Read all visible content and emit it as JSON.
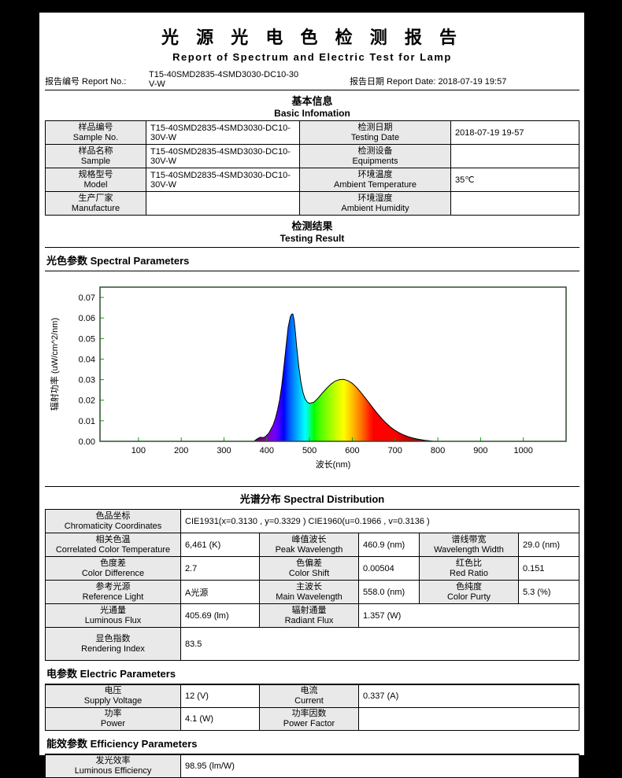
{
  "header": {
    "title_cn": "光 源 光 电 色 检 测 报 告",
    "title_en": "Report  of  Spectrum  and  Electric  Test  for  Lamp",
    "report_no_label": "报告编号 Report No.:",
    "report_no_value": "T15-40SMD2835-4SMD3030-DC10-30V-W",
    "report_date_label": "报告日期 Report Date:",
    "report_date_value": "2018-07-19 19:57"
  },
  "basic_info": {
    "title_cn": "基本信息",
    "title_en": "Basic Infomation",
    "rows": [
      {
        "l1_cn": "样品编号",
        "l1_en": "Sample No.",
        "v1": "T15-40SMD2835-4SMD3030-DC10-30V-W",
        "l2_cn": "检测日期",
        "l2_en": "Testing Date",
        "v2": "2018-07-19 19-57"
      },
      {
        "l1_cn": "样品名称",
        "l1_en": "Sample",
        "v1": "T15-40SMD2835-4SMD3030-DC10-30V-W",
        "l2_cn": "检测设备",
        "l2_en": "Equipments",
        "v2": ""
      },
      {
        "l1_cn": "规格型号",
        "l1_en": "Model",
        "v1": "T15-40SMD2835-4SMD3030-DC10-30V-W",
        "l2_cn": "环境温度",
        "l2_en": "Ambient Temperature",
        "v2": "35℃"
      },
      {
        "l1_cn": "生产厂家",
        "l1_en": "Manufacture",
        "v1": "",
        "l2_cn": "环境湿度",
        "l2_en": "Ambient Humidity",
        "v2": ""
      }
    ]
  },
  "testing_result": {
    "title_cn": "检测结果",
    "title_en": "Testing Result"
  },
  "sections": {
    "spectral_params": {
      "cn": "光色参数",
      "en": "Spectral Parameters"
    },
    "spectral_distribution": {
      "cn": "光谱分布",
      "en": "Spectral Distribution"
    },
    "electric_params": {
      "cn": "电参数",
      "en": "Electric Parameters"
    },
    "efficiency_params": {
      "cn": "能效参数",
      "en": "Efficiency Parameters"
    }
  },
  "spectral": {
    "chromaticity_label_cn": "色品坐标",
    "chromaticity_label_en": "Chromaticity Coordinates",
    "chromaticity_value": "CIE1931(x=0.3130 , y=0.3329 )    CIE1960(u=0.1966 , v=0.3136 )",
    "rows": [
      {
        "l1_cn": "相关色温",
        "l1_en": "Correlated Color Temperature",
        "v1": "6,461 (K)",
        "l2_cn": "峰值波长",
        "l2_en": "Peak Wavelength",
        "v2": "460.9 (nm)",
        "l3_cn": "谱线带宽",
        "l3_en": "Wavelength Width",
        "v3": "29.0 (nm)"
      },
      {
        "l1_cn": "色度差",
        "l1_en": "Color Difference",
        "v1": "2.7",
        "l2_cn": "色偏差",
        "l2_en": "Color Shift",
        "v2": "0.00504",
        "l3_cn": "红色比",
        "l3_en": "Red Ratio",
        "v3": "0.151"
      },
      {
        "l1_cn": "参考光源",
        "l1_en": "Reference Light",
        "v1": "A光源",
        "l2_cn": "主波长",
        "l2_en": "Main Wavelength",
        "v2": "558.0 (nm)",
        "l3_cn": "色纯度",
        "l3_en": "Color Purty",
        "v3": "5.3 (%)"
      }
    ],
    "flux_row": {
      "l1_cn": "光通量",
      "l1_en": "Luminous Flux",
      "v1": "405.69 (lm)",
      "l2_cn": "辐射通量",
      "l2_en": "Radiant Flux",
      "v2": "1.357 (W)"
    },
    "cri_row": {
      "l_cn": "显色指数",
      "l_en": "Rendering Index",
      "v": "83.5"
    }
  },
  "electric": {
    "rows": [
      {
        "l1_cn": "电压",
        "l1_en": "Supply Voltage",
        "v1": "12 (V)",
        "l2_cn": "电流",
        "l2_en": "Current",
        "v2": "0.337 (A)"
      },
      {
        "l1_cn": "功率",
        "l1_en": "Power",
        "v1": "4.1 (W)",
        "l2_cn": "功率因数",
        "l2_en": "Power Factor",
        "v2": ""
      }
    ]
  },
  "efficiency": {
    "row": {
      "l_cn": "发光效率",
      "l_en": "Luminous Efficiency",
      "v": "98.95 (lm/W)"
    }
  },
  "chart_data": {
    "type": "area",
    "title": "",
    "xlabel": "波长(nm)",
    "ylabel": "辐射功率 (uW/cm^2/nm)",
    "xlim": [
      10,
      1100
    ],
    "ylim": [
      0,
      0.075
    ],
    "xticks": [
      100,
      200,
      300,
      400,
      500,
      600,
      700,
      800,
      900,
      1000
    ],
    "yticks": [
      0,
      0.01,
      0.02,
      0.03,
      0.04,
      0.05,
      0.06,
      0.07
    ],
    "grid": false,
    "legend": false,
    "frame_color": "#2e4d2e",
    "tick_color": "#00a400",
    "curve_color": "#000000",
    "peak_nm": 460.9,
    "peak_value": 0.062,
    "series": [
      {
        "name": "spectral-power-distribution",
        "x": [
          370,
          375,
          380,
          385,
          390,
          395,
          400,
          405,
          410,
          415,
          420,
          425,
          430,
          435,
          440,
          445,
          450,
          455,
          458,
          461,
          464,
          467,
          470,
          475,
          480,
          485,
          490,
          495,
          500,
          510,
          520,
          530,
          540,
          550,
          560,
          570,
          580,
          590,
          600,
          610,
          620,
          630,
          640,
          650,
          660,
          670,
          680,
          690,
          700,
          710,
          720,
          730,
          740,
          750,
          760,
          770,
          780,
          790
        ],
        "y": [
          0,
          0.0008,
          0.0015,
          0.002,
          0.0018,
          0.002,
          0.003,
          0.004,
          0.006,
          0.008,
          0.011,
          0.015,
          0.02,
          0.027,
          0.036,
          0.046,
          0.0555,
          0.0605,
          0.0618,
          0.062,
          0.059,
          0.053,
          0.046,
          0.036,
          0.0285,
          0.0235,
          0.0205,
          0.019,
          0.0185,
          0.019,
          0.021,
          0.0235,
          0.0258,
          0.0278,
          0.0293,
          0.03,
          0.0301,
          0.0295,
          0.0282,
          0.0262,
          0.0238,
          0.0212,
          0.0185,
          0.0158,
          0.0132,
          0.0108,
          0.0087,
          0.0068,
          0.0053,
          0.0041,
          0.0031,
          0.0023,
          0.0017,
          0.0012,
          0.0008,
          0.0005,
          0.0003,
          0
        ]
      }
    ]
  }
}
